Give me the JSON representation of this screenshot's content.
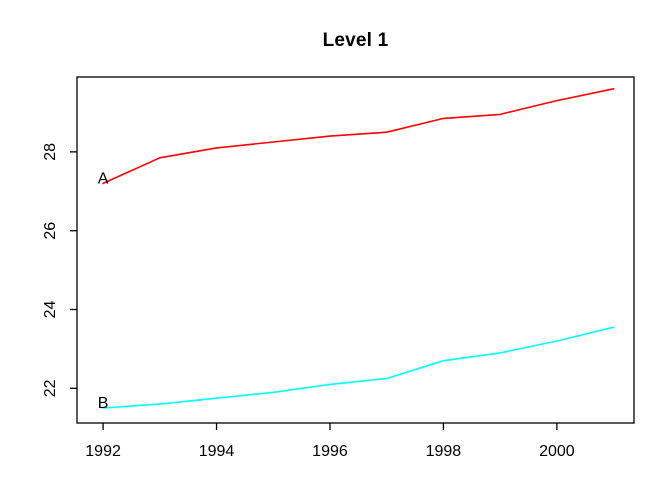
{
  "title": "Level 1",
  "chart_data": {
    "type": "line",
    "x": [
      1992,
      1993,
      1994,
      1995,
      1996,
      1997,
      1998,
      1999,
      2000,
      2001
    ],
    "series": [
      {
        "name": "A",
        "label": "A",
        "color": "#ff0000",
        "values": [
          27.2,
          27.85,
          28.1,
          28.25,
          28.4,
          28.5,
          28.85,
          28.95,
          29.3,
          29.6
        ]
      },
      {
        "name": "B",
        "label": "B",
        "color": "#00ffff",
        "values": [
          21.5,
          21.6,
          21.75,
          21.9,
          22.1,
          22.25,
          22.7,
          22.9,
          23.2,
          23.55
        ]
      }
    ],
    "x_ticks": [
      1992,
      1994,
      1996,
      1998,
      2000
    ],
    "x_tick_labels": [
      "1992",
      "1994",
      "1996",
      "1998",
      "2000"
    ],
    "y_ticks": [
      22,
      24,
      26,
      28
    ],
    "y_tick_labels": [
      "22",
      "24",
      "26",
      "28"
    ],
    "xlim": [
      1991.54,
      2001.36
    ],
    "ylim": [
      21.12,
      29.9
    ],
    "grid": false,
    "legend_position": "none",
    "series_labels_inline_at_first_point": true,
    "axis_color": "#000000",
    "background_color": "#ffffff",
    "title": "Level 1"
  }
}
